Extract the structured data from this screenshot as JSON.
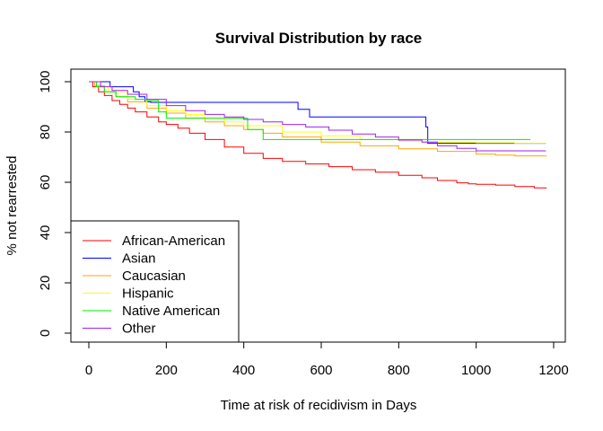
{
  "chart_data": {
    "type": "line",
    "step": true,
    "title": "Survival Distribution by race",
    "xlabel": "Time at risk of recidivism in Days",
    "ylabel": "% not rearrested",
    "xlim": [
      0,
      1200
    ],
    "ylim": [
      0,
      100
    ],
    "xticks": [
      0,
      200,
      400,
      600,
      800,
      1000,
      1200
    ],
    "yticks": [
      0,
      20,
      40,
      60,
      80,
      100
    ],
    "grid": false,
    "legend_position": "bottom-left",
    "series": [
      {
        "name": "African-American",
        "color": "#ff0000",
        "x": [
          0,
          10,
          25,
          40,
          60,
          80,
          100,
          120,
          150,
          180,
          200,
          230,
          260,
          300,
          350,
          400,
          450,
          500,
          560,
          620,
          680,
          740,
          800,
          860,
          900,
          950,
          980,
          1000,
          1050,
          1100,
          1150,
          1180
        ],
        "y": [
          100,
          98,
          96,
          94.5,
          92.5,
          91,
          89.5,
          88,
          86,
          84,
          83,
          81.5,
          79.5,
          77,
          74,
          71.5,
          69.5,
          68.3,
          67.3,
          66.2,
          65,
          64,
          62.8,
          61.8,
          60.7,
          59.8,
          59.4,
          59.2,
          58.9,
          58.3,
          57.8,
          57.5
        ]
      },
      {
        "name": "Asian",
        "color": "#0000ff",
        "x": [
          0,
          55,
          115,
          130,
          145,
          160,
          540,
          570,
          870,
          875,
          1180
        ],
        "y": [
          100,
          98,
          96,
          94,
          92,
          91.8,
          89,
          86,
          82,
          75.5,
          75.5
        ]
      },
      {
        "name": "Caucasian",
        "color": "#ffa500",
        "x": [
          0,
          15,
          40,
          70,
          100,
          150,
          200,
          250,
          300,
          350,
          400,
          450,
          500,
          600,
          700,
          800,
          900,
          1000,
          1050,
          1100,
          1180
        ],
        "y": [
          100,
          98.5,
          96,
          94,
          92,
          89.5,
          87.5,
          85.5,
          84,
          82.5,
          81,
          79.5,
          78,
          76,
          74.5,
          73.3,
          72.3,
          71.2,
          70.8,
          70.5,
          70.3
        ]
      },
      {
        "name": "Hispanic",
        "color": "#ffff00",
        "x": [
          0,
          20,
          50,
          100,
          150,
          200,
          250,
          300,
          350,
          400,
          500,
          600,
          700,
          800,
          850,
          900,
          1000,
          1100,
          1180
        ],
        "y": [
          100,
          98,
          96,
          93,
          90.5,
          88.5,
          87,
          85.5,
          84,
          82.5,
          80,
          78.5,
          77,
          76.3,
          76.1,
          75.9,
          75.7,
          75.5,
          75.4
        ]
      },
      {
        "name": "Native American",
        "color": "#00ee00",
        "x": [
          0,
          20,
          40,
          70,
          120,
          150,
          180,
          200,
          250,
          300,
          410,
          450,
          700,
          1140
        ],
        "y": [
          100,
          98,
          96,
          94,
          93,
          92.5,
          88,
          85.5,
          85.5,
          85.5,
          81,
          77,
          77,
          77
        ]
      },
      {
        "name": "Other",
        "color": "#a020f0",
        "x": [
          0,
          30,
          60,
          100,
          150,
          200,
          250,
          300,
          350,
          400,
          450,
          500,
          560,
          620,
          680,
          740,
          800,
          860,
          900,
          950,
          1000,
          1180
        ],
        "y": [
          100,
          98,
          96.5,
          95,
          93,
          90.5,
          88.5,
          87,
          86,
          85,
          84,
          83,
          82,
          80.7,
          79.2,
          78,
          76.8,
          76,
          74.5,
          73.5,
          72.5,
          72.5
        ]
      }
    ]
  }
}
